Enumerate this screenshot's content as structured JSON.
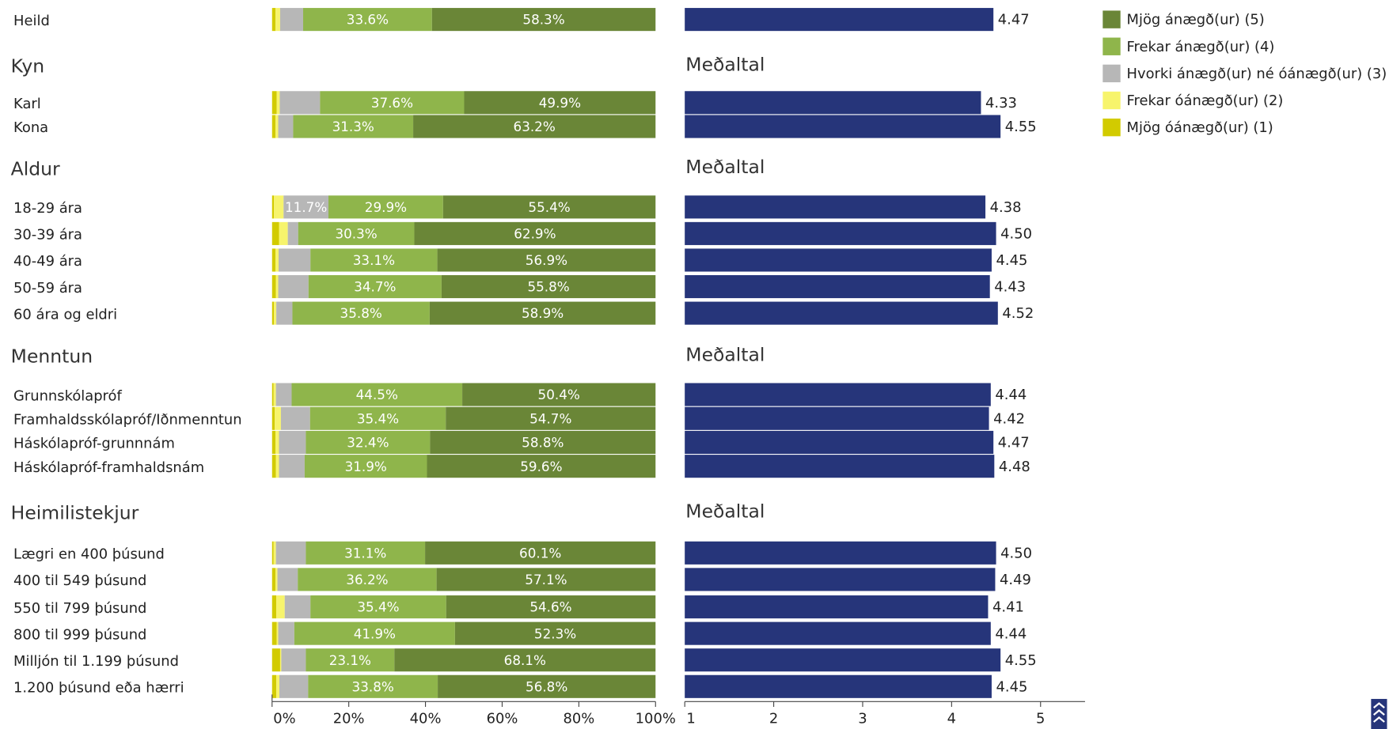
{
  "chart_data": [
    {
      "type": "stacked-bar-100",
      "orientation": "horizontal",
      "categories": [
        "Heild",
        "Kyn",
        "Karl",
        "Kona",
        "Aldur",
        "18-29 ára",
        "30-39 ára",
        "40-49 ára",
        "50-59 ára",
        "60 ára og eldri",
        "Menntun",
        "Grunnskólapróf",
        "Framhaldsskólapróf/Iðnmenntun",
        "Háskólapróf-grunnnám",
        "Háskólapróf-framhaldsnám",
        "Heimilistekjur",
        "Lægri en 400 þúsund",
        "400 til 549 þúsund",
        "550 til 799 þúsund",
        "800 til 999 þúsund",
        "Milljón til 1.199 þúsund",
        "1.200 þúsund eða hærri"
      ],
      "series": [
        {
          "name": "Mjög óánægð(ur) (1)",
          "color": "#d2cb00",
          "values": [
            0.9,
            null,
            1.2,
            0.9,
            null,
            0.5,
            1.8,
            0.9,
            1.0,
            0.5,
            null,
            0.4,
            0.7,
            0.9,
            1.0,
            null,
            0.4,
            0.9,
            1.1,
            1.2,
            2.1,
            1.1
          ]
        },
        {
          "name": "Frekar óánægð(ur) (2)",
          "color": "#f7f46c",
          "values": [
            1.2,
            null,
            0.8,
            0.7,
            null,
            2.5,
            2.3,
            0.8,
            0.6,
            0.6,
            null,
            0.6,
            1.6,
            0.9,
            0.8,
            null,
            0.6,
            0.5,
            2.2,
            0.4,
            0.3,
            0.8
          ]
        },
        {
          "name": "Hvorki ánægð(ur) né óánægð(ur) (3)",
          "color": "#b7b7b7",
          "values": [
            6.0,
            null,
            10.5,
            3.9,
            null,
            11.7,
            2.7,
            8.3,
            7.9,
            4.2,
            null,
            4.1,
            7.6,
            7.0,
            6.7,
            null,
            7.8,
            5.3,
            6.7,
            4.2,
            6.4,
            7.5
          ],
          "value_labels": [
            null,
            null,
            null,
            null,
            null,
            "11.7%",
            null,
            null,
            null,
            null,
            null,
            null,
            null,
            null,
            null,
            null,
            null,
            null,
            null,
            null,
            null,
            null
          ]
        },
        {
          "name": "Frekar ánægð(ur) (4)",
          "color": "#8fb54b",
          "values": [
            33.6,
            null,
            37.6,
            31.3,
            null,
            29.9,
            30.3,
            33.1,
            34.7,
            35.8,
            null,
            44.5,
            35.4,
            32.4,
            31.9,
            null,
            31.1,
            36.2,
            35.4,
            41.9,
            23.1,
            33.8
          ],
          "value_labels": [
            "33.6%",
            null,
            "37.6%",
            "31.3%",
            null,
            "29.9%",
            "30.3%",
            "33.1%",
            "34.7%",
            "35.8%",
            null,
            "44.5%",
            "35.4%",
            "32.4%",
            "31.9%",
            null,
            "31.1%",
            "36.2%",
            "35.4%",
            "41.9%",
            "23.1%",
            "33.8%"
          ]
        },
        {
          "name": "Mjög ánægð(ur) (5)",
          "color": "#6a8637",
          "values": [
            58.3,
            null,
            49.9,
            63.2,
            null,
            55.4,
            62.9,
            56.9,
            55.8,
            58.9,
            null,
            50.4,
            54.7,
            58.8,
            59.6,
            null,
            60.1,
            57.1,
            54.6,
            52.3,
            68.1,
            56.8
          ],
          "value_labels": [
            "58.3%",
            null,
            "49.9%",
            "63.2%",
            null,
            "55.4%",
            "62.9%",
            "56.9%",
            "55.8%",
            "58.9%",
            null,
            "50.4%",
            "54.7%",
            "58.8%",
            "59.6%",
            null,
            "60.1%",
            "57.1%",
            "54.6%",
            "52.3%",
            "68.1%",
            "56.8%"
          ]
        }
      ],
      "xlim": [
        0,
        100
      ],
      "xticks": [
        {
          "value": 0,
          "label": "0%"
        },
        {
          "value": 20,
          "label": "20%"
        },
        {
          "value": 40,
          "label": "40%"
        },
        {
          "value": 60,
          "label": "60%"
        },
        {
          "value": 80,
          "label": "80%"
        },
        {
          "value": 100,
          "label": "100%"
        }
      ],
      "legend": "top-right"
    },
    {
      "type": "bar",
      "orientation": "horizontal",
      "color": "#26357a",
      "annotations": [
        "Meðaltal",
        "Meðaltal",
        "Meðaltal",
        "Meðaltal"
      ],
      "values": [
        4.47,
        null,
        4.33,
        4.55,
        null,
        4.38,
        4.5,
        4.45,
        4.43,
        4.52,
        null,
        4.44,
        4.42,
        4.47,
        4.48,
        null,
        4.5,
        4.49,
        4.41,
        4.44,
        4.55,
        4.45
      ],
      "value_labels": [
        "4.47",
        null,
        "4.33",
        "4.55",
        null,
        "4.38",
        "4.50",
        "4.45",
        "4.43",
        "4.52",
        null,
        "4.44",
        "4.42",
        "4.47",
        "4.48",
        null,
        "4.50",
        "4.49",
        "4.41",
        "4.44",
        "4.55",
        "4.45"
      ],
      "xlim": [
        1,
        5.5
      ],
      "xticks": [
        1,
        2,
        3,
        4,
        5
      ]
    }
  ]
}
